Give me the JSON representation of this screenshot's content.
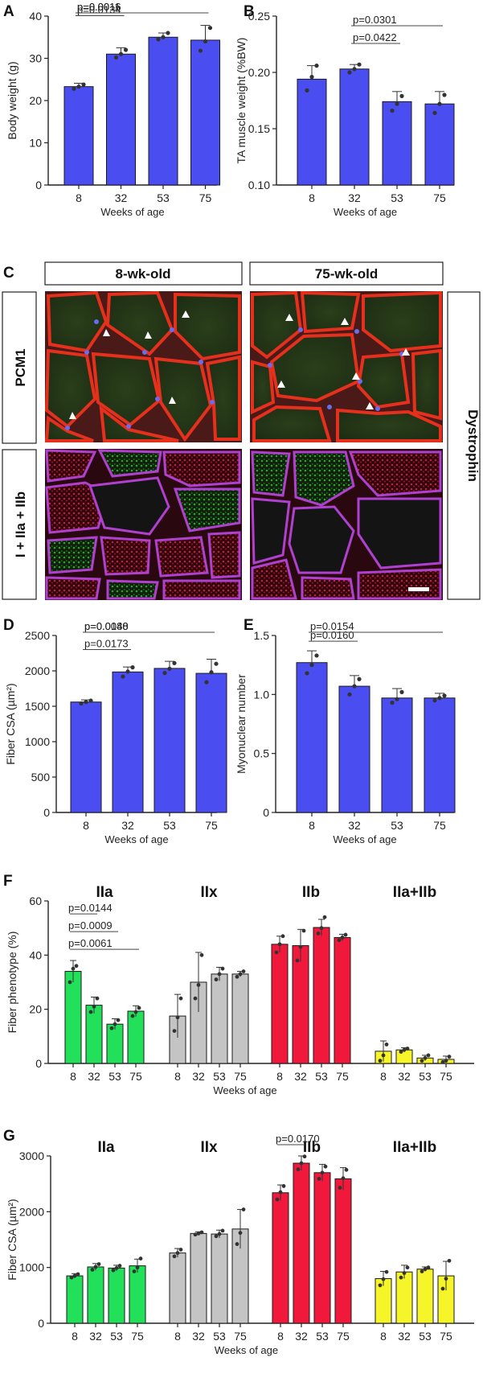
{
  "panels": [
    {
      "letter": "A"
    },
    {
      "letter": "B"
    },
    {
      "letter": "C"
    },
    {
      "letter": "D"
    },
    {
      "letter": "E"
    },
    {
      "letter": "F"
    },
    {
      "letter": "G"
    }
  ],
  "microscopy": {
    "col_headers": [
      "8-wk-old",
      "75-wk-old"
    ],
    "row_labels": [
      "PCM1",
      "I + IIa + IIb"
    ],
    "side_label": "Dystrophin"
  },
  "colors": {
    "blue": "#4a4ef0",
    "green": "#22e05a",
    "gray": "#c4c4c4",
    "red": "#f0193c",
    "yellow": "#f5f52a"
  },
  "chart_data": [
    {
      "id": "A",
      "type": "bar",
      "categories": [
        "8",
        "32",
        "53",
        "75"
      ],
      "values": [
        23.3,
        31.0,
        35.0,
        34.3
      ],
      "errors": [
        0.8,
        1.5,
        1.0,
        3.5
      ],
      "points": [
        [
          22.8,
          23.3,
          23.8
        ],
        [
          30.2,
          31.0,
          32.0
        ],
        [
          34.5,
          35.0,
          36.0
        ],
        [
          31.8,
          34.0,
          37.2
        ]
      ],
      "ylabel": "Body weight (g)",
      "xlabel": "Weeks of age",
      "ylim": [
        0,
        40
      ],
      "yticks": [
        "0",
        "10",
        "20",
        "30",
        "40"
      ],
      "color": "#4a4ef0",
      "comparisons": [
        {
          "from": 0,
          "to": 1,
          "label": "p=0.0134"
        },
        {
          "from": 0,
          "to": 2,
          "label": "p=0.0011"
        },
        {
          "from": 0,
          "to": 3,
          "label": "p=0.0016"
        }
      ]
    },
    {
      "id": "B",
      "type": "bar",
      "categories": [
        "8",
        "32",
        "53",
        "75"
      ],
      "values": [
        0.194,
        0.203,
        0.174,
        0.172
      ],
      "errors": [
        0.012,
        0.004,
        0.009,
        0.011
      ],
      "points": [
        [
          0.184,
          0.196,
          0.206
        ],
        [
          0.2,
          0.203,
          0.207
        ],
        [
          0.166,
          0.172,
          0.179
        ],
        [
          0.164,
          0.172,
          0.18
        ]
      ],
      "ylabel": "TA muscle weight (%BW)",
      "xlabel": "Weeks of age",
      "ylim": [
        0.1,
        0.25
      ],
      "yticks": [
        "0.10",
        "0.15",
        "0.20",
        "0.25"
      ],
      "color": "#4a4ef0",
      "comparisons": [
        {
          "from": 1,
          "to": 2,
          "label": "p=0.0422"
        },
        {
          "from": 1,
          "to": 3,
          "label": "p=0.0301"
        }
      ]
    },
    {
      "id": "D",
      "type": "bar",
      "categories": [
        "8",
        "32",
        "53",
        "75"
      ],
      "values": [
        1560,
        1985,
        2035,
        1965
      ],
      "errors": [
        30,
        70,
        100,
        200
      ],
      "points": [
        [
          1540,
          1560,
          1580
        ],
        [
          1920,
          1990,
          2050
        ],
        [
          1970,
          2030,
          2110
        ],
        [
          1840,
          1980,
          2100
        ]
      ],
      "ylabel": "Fiber CSA (µm²)",
      "xlabel": "Weeks of age",
      "ylim": [
        0,
        2500
      ],
      "yticks": [
        "0",
        "500",
        "1000",
        "1500",
        "2000",
        "2500"
      ],
      "color": "#4a4ef0",
      "comparisons": [
        {
          "from": 0,
          "to": 1,
          "label": "p=0.0173"
        },
        {
          "from": 0,
          "to": 2,
          "label": "p=0.0088"
        },
        {
          "from": 0,
          "to": 3,
          "label": "p=0.0140"
        }
      ]
    },
    {
      "id": "E",
      "type": "bar",
      "categories": [
        "8",
        "32",
        "53",
        "75"
      ],
      "values": [
        1.27,
        1.07,
        0.97,
        0.97
      ],
      "errors": [
        0.1,
        0.09,
        0.08,
        0.04
      ],
      "points": [
        [
          1.18,
          1.25,
          1.33
        ],
        [
          1.0,
          1.07,
          1.13
        ],
        [
          0.93,
          0.96,
          1.02
        ],
        [
          0.95,
          0.97,
          0.99
        ]
      ],
      "ylabel": "Myonuclear number",
      "xlabel": "Weeks of age",
      "ylim": [
        0,
        1.5
      ],
      "yticks": [
        "0",
        "0.5",
        "1.0",
        "1.5"
      ],
      "color": "#4a4ef0",
      "comparisons": [
        {
          "from": 0,
          "to": 1,
          "label": "p=0.0160"
        },
        {
          "from": 0,
          "to": 3,
          "label": "p=0.0154"
        }
      ]
    },
    {
      "id": "F",
      "type": "bar",
      "groups": [
        "IIa",
        "IIx",
        "IIb",
        "IIa+IIb"
      ],
      "categories": [
        "8",
        "32",
        "53",
        "75"
      ],
      "series": [
        {
          "name": "IIa",
          "values": [
            34,
            21.5,
            14.5,
            19.3
          ],
          "errors": [
            4,
            3,
            2,
            2
          ],
          "points": [
            [
              30,
              35,
              36
            ],
            [
              19,
              21,
              24
            ],
            [
              13,
              14.5,
              16
            ],
            [
              17.5,
              19,
              20.5
            ]
          ],
          "color": "#22e05a"
        },
        {
          "name": "IIx",
          "values": [
            17.5,
            30,
            33,
            33
          ],
          "errors": [
            8,
            11,
            2.5,
            1
          ],
          "points": [
            [
              12,
              17,
              24
            ],
            [
              24,
              29,
              40
            ],
            [
              31,
              33,
              35
            ],
            [
              32,
              33,
              34
            ]
          ],
          "color": "#c4c4c4"
        },
        {
          "name": "IIb",
          "values": [
            44,
            43.5,
            50.2,
            46.5
          ],
          "errors": [
            3,
            6,
            3,
            1.2
          ],
          "points": [
            [
              41,
              44,
              47
            ],
            [
              38,
              43,
              49
            ],
            [
              48,
              50,
              54
            ],
            [
              45.5,
              46.5,
              47.5
            ]
          ],
          "color": "#f0193c"
        },
        {
          "name": "IIa+IIb",
          "values": [
            4.5,
            5,
            2,
            1.5
          ],
          "errors": [
            3.8,
            0.8,
            1,
            1.2
          ],
          "points": [
            [
              1,
              3,
              7
            ],
            [
              4.3,
              5,
              5.5
            ],
            [
              1,
              2,
              3
            ],
            [
              0.5,
              1,
              2.5
            ]
          ],
          "color": "#f5f52a"
        }
      ],
      "ylabel": "Fiber phenotype (%)",
      "xlabel": "Weeks of age",
      "ylim": [
        0,
        60
      ],
      "yticks": [
        "0",
        "20",
        "40",
        "60"
      ],
      "comparisons": [
        {
          "series": 0,
          "from": 0,
          "to": 1,
          "label": "p=0.0144"
        },
        {
          "series": 0,
          "from": 0,
          "to": 2,
          "label": "p=0.0009"
        },
        {
          "series": 0,
          "from": 0,
          "to": 3,
          "label": "p=0.0061"
        }
      ]
    },
    {
      "id": "G",
      "type": "bar",
      "groups": [
        "IIa",
        "IIx",
        "IIb",
        "IIa+IIb"
      ],
      "categories": [
        "8",
        "32",
        "53",
        "75"
      ],
      "series": [
        {
          "name": "IIa",
          "values": [
            850,
            1010,
            990,
            1030
          ],
          "errors": [
            40,
            60,
            50,
            120
          ],
          "points": [
            [
              820,
              850,
              880
            ],
            [
              960,
              1010,
              1060
            ],
            [
              950,
              990,
              1030
            ],
            [
              930,
              1000,
              1160
            ]
          ],
          "color": "#22e05a"
        },
        {
          "name": "IIx",
          "values": [
            1260,
            1610,
            1600,
            1690
          ],
          "errors": [
            80,
            30,
            70,
            350
          ],
          "points": [
            [
              1200,
              1260,
              1320
            ],
            [
              1590,
              1610,
              1630
            ],
            [
              1560,
              1600,
              1660
            ],
            [
              1420,
              1620,
              2040
            ]
          ],
          "color": "#c4c4c4"
        },
        {
          "name": "IIb",
          "values": [
            2340,
            2870,
            2700,
            2590
          ],
          "errors": [
            140,
            130,
            150,
            200
          ],
          "points": [
            [
              2220,
              2350,
              2460
            ],
            [
              2760,
              2870,
              2990
            ],
            [
              2590,
              2700,
              2810
            ],
            [
              2430,
              2600,
              2750
            ]
          ],
          "color": "#f0193c"
        },
        {
          "name": "IIa+IIb",
          "values": [
            800,
            920,
            970,
            850
          ],
          "errors": [
            130,
            120,
            40,
            260
          ],
          "points": [
            [
              680,
              790,
              920
            ],
            [
              820,
              900,
              1000
            ],
            [
              930,
              970,
              1000
            ],
            [
              620,
              800,
              1120
            ]
          ],
          "color": "#f5f52a"
        }
      ],
      "ylabel": "Fiber CSA (µm²)",
      "xlabel": "Weeks of age",
      "ylim": [
        0,
        3000
      ],
      "yticks": [
        "0",
        "1000",
        "2000",
        "3000"
      ],
      "comparisons": [
        {
          "series": 2,
          "from": 0,
          "to": 1,
          "label": "p=0.0170"
        }
      ]
    }
  ]
}
